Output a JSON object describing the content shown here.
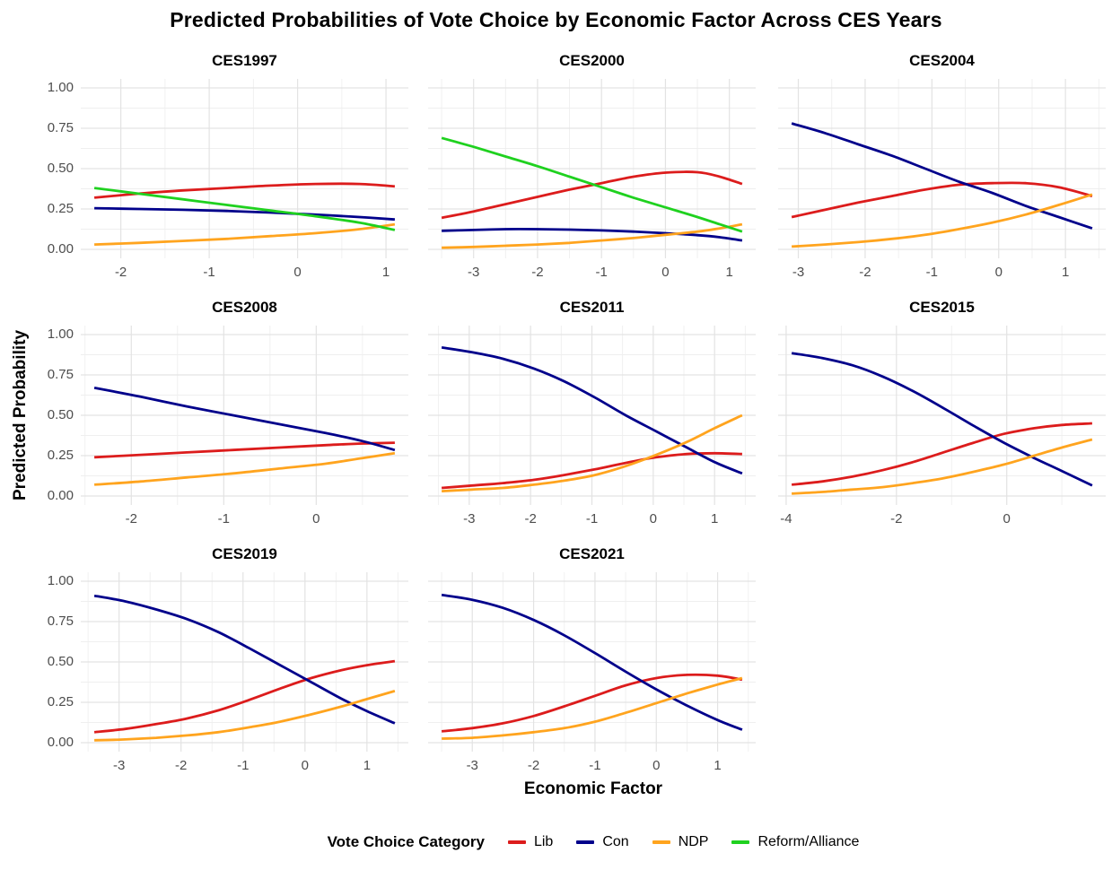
{
  "chart_data": {
    "type": "line",
    "title": "Predicted Probabilities of Vote Choice by Economic Factor Across CES Years",
    "x_label": "Economic Factor",
    "y_label": "Predicted Probability",
    "ylim": [
      0,
      1
    ],
    "grid": true,
    "y_ticks": [
      {
        "value": 1.0,
        "label": "1.00"
      },
      {
        "value": 0.75,
        "label": "0.75"
      },
      {
        "value": 0.5,
        "label": "0.50"
      },
      {
        "value": 0.25,
        "label": "0.25"
      },
      {
        "value": 0.0,
        "label": "0.00"
      }
    ],
    "legend": {
      "title": "Vote Choice Category",
      "position": "bottom",
      "items": [
        {
          "label": "Lib",
          "color": "#DC1C1C"
        },
        {
          "label": "Con",
          "color": "#00008B"
        },
        {
          "label": "NDP",
          "color": "#FFA41E"
        },
        {
          "label": "Reform/Alliance",
          "color": "#1FD11F"
        }
      ]
    },
    "facets": [
      {
        "title": "CES1997",
        "xlim": [
          -2.3,
          1.1
        ],
        "xticks": [
          -2,
          -1,
          0,
          1
        ],
        "series": [
          {
            "name": "Lib",
            "x": [
              -2.3,
              -1.8,
              -1.3,
              -0.8,
              -0.3,
              0.2,
              0.7,
              1.1
            ],
            "y": [
              0.32,
              0.345,
              0.365,
              0.38,
              0.395,
              0.405,
              0.405,
              0.39
            ]
          },
          {
            "name": "Con",
            "x": [
              -2.3,
              -1.8,
              -1.3,
              -0.8,
              -0.3,
              0.2,
              0.7,
              1.1
            ],
            "y": [
              0.255,
              0.25,
              0.245,
              0.238,
              0.228,
              0.215,
              0.2,
              0.185
            ]
          },
          {
            "name": "NDP",
            "x": [
              -2.3,
              -1.8,
              -1.3,
              -0.8,
              -0.3,
              0.2,
              0.7,
              1.1
            ],
            "y": [
              0.03,
              0.04,
              0.052,
              0.065,
              0.082,
              0.1,
              0.125,
              0.155
            ]
          },
          {
            "name": "Reform/Alliance",
            "x": [
              -2.3,
              -1.8,
              -1.3,
              -0.8,
              -0.3,
              0.2,
              0.7,
              1.1
            ],
            "y": [
              0.38,
              0.345,
              0.31,
              0.275,
              0.24,
              0.205,
              0.165,
              0.12
            ]
          }
        ]
      },
      {
        "title": "CES2000",
        "xlim": [
          -3.5,
          1.2
        ],
        "xticks": [
          -3,
          -2,
          -1,
          0,
          1
        ],
        "series": [
          {
            "name": "Lib",
            "x": [
              -3.5,
              -3,
              -2.5,
              -2,
              -1.5,
              -1,
              -0.5,
              0,
              0.5,
              0.85,
              1.2
            ],
            "y": [
              0.195,
              0.235,
              0.28,
              0.325,
              0.37,
              0.41,
              0.45,
              0.475,
              0.478,
              0.45,
              0.405
            ]
          },
          {
            "name": "Con",
            "x": [
              -3.5,
              -3,
              -2.5,
              -2,
              -1.5,
              -1,
              -0.5,
              0,
              0.5,
              0.85,
              1.2
            ],
            "y": [
              0.115,
              0.12,
              0.125,
              0.125,
              0.122,
              0.117,
              0.11,
              0.1,
              0.088,
              0.075,
              0.055
            ]
          },
          {
            "name": "NDP",
            "x": [
              -3.5,
              -3,
              -2.5,
              -2,
              -1.5,
              -1,
              -0.5,
              0,
              0.5,
              0.85,
              1.2
            ],
            "y": [
              0.01,
              0.015,
              0.022,
              0.03,
              0.04,
              0.055,
              0.07,
              0.09,
              0.11,
              0.13,
              0.155
            ]
          },
          {
            "name": "Reform/Alliance",
            "x": [
              -3.5,
              -3,
              -2.5,
              -2,
              -1.5,
              -1,
              -0.5,
              0,
              0.5,
              0.85,
              1.2
            ],
            "y": [
              0.69,
              0.635,
              0.575,
              0.515,
              0.45,
              0.385,
              0.32,
              0.26,
              0.2,
              0.155,
              0.11
            ]
          }
        ]
      },
      {
        "title": "CES2004",
        "xlim": [
          -3.1,
          1.4
        ],
        "xticks": [
          -3,
          -2,
          -1,
          0,
          1
        ],
        "series": [
          {
            "name": "Lib",
            "x": [
              -3.1,
              -2.6,
              -2.1,
              -1.6,
              -1.1,
              -0.6,
              -0.1,
              0.4,
              0.9,
              1.4
            ],
            "y": [
              0.2,
              0.245,
              0.29,
              0.33,
              0.37,
              0.4,
              0.41,
              0.41,
              0.385,
              0.33
            ]
          },
          {
            "name": "Con",
            "x": [
              -3.1,
              -2.6,
              -2.1,
              -1.6,
              -1.1,
              -0.6,
              -0.1,
              0.4,
              0.9,
              1.4
            ],
            "y": [
              0.78,
              0.72,
              0.65,
              0.58,
              0.5,
              0.42,
              0.35,
              0.27,
              0.2,
              0.13
            ]
          },
          {
            "name": "NDP",
            "x": [
              -3.1,
              -2.6,
              -2.1,
              -1.6,
              -1.1,
              -0.6,
              -0.1,
              0.4,
              0.9,
              1.4
            ],
            "y": [
              0.017,
              0.03,
              0.045,
              0.065,
              0.09,
              0.125,
              0.165,
              0.215,
              0.275,
              0.34
            ]
          }
        ]
      },
      {
        "title": "CES2008",
        "xlim": [
          -2.4,
          0.85
        ],
        "xticks": [
          -2,
          -1,
          0
        ],
        "series": [
          {
            "name": "Lib",
            "x": [
              -2.4,
              -1.9,
              -1.4,
              -0.9,
              -0.4,
              0.1,
              0.5,
              0.85
            ],
            "y": [
              0.24,
              0.255,
              0.27,
              0.285,
              0.3,
              0.315,
              0.325,
              0.33
            ]
          },
          {
            "name": "Con",
            "x": [
              -2.4,
              -1.9,
              -1.4,
              -0.9,
              -0.4,
              0.1,
              0.5,
              0.85
            ],
            "y": [
              0.67,
              0.615,
              0.555,
              0.5,
              0.445,
              0.39,
              0.34,
              0.285
            ]
          },
          {
            "name": "NDP",
            "x": [
              -2.4,
              -1.9,
              -1.4,
              -0.9,
              -0.4,
              0.1,
              0.5,
              0.85
            ],
            "y": [
              0.07,
              0.09,
              0.115,
              0.14,
              0.17,
              0.2,
              0.235,
              0.265
            ]
          }
        ]
      },
      {
        "title": "CES2011",
        "xlim": [
          -3.45,
          1.45
        ],
        "xticks": [
          -3,
          -2,
          -1,
          0,
          1
        ],
        "series": [
          {
            "name": "Lib",
            "x": [
              -3.45,
              -2.95,
              -2.45,
              -1.95,
              -1.45,
              -0.95,
              -0.45,
              0.05,
              0.55,
              1.0,
              1.45
            ],
            "y": [
              0.05,
              0.065,
              0.08,
              0.1,
              0.13,
              0.165,
              0.205,
              0.24,
              0.26,
              0.265,
              0.26
            ]
          },
          {
            "name": "Con",
            "x": [
              -3.45,
              -2.95,
              -2.45,
              -1.95,
              -1.45,
              -0.95,
              -0.45,
              0.05,
              0.55,
              1.0,
              1.45
            ],
            "y": [
              0.92,
              0.89,
              0.85,
              0.79,
              0.71,
              0.61,
              0.5,
              0.4,
              0.3,
              0.21,
              0.14
            ]
          },
          {
            "name": "NDP",
            "x": [
              -3.45,
              -2.95,
              -2.45,
              -1.95,
              -1.45,
              -0.95,
              -0.45,
              0.05,
              0.55,
              1.0,
              1.45
            ],
            "y": [
              0.03,
              0.04,
              0.05,
              0.07,
              0.095,
              0.13,
              0.185,
              0.255,
              0.335,
              0.42,
              0.5
            ]
          }
        ]
      },
      {
        "title": "CES2015",
        "xlim": [
          -3.9,
          1.55
        ],
        "xticks": [
          -4,
          -2,
          0
        ],
        "series": [
          {
            "name": "Lib",
            "x": [
              -3.9,
              -3.35,
              -2.8,
              -2.25,
              -1.7,
              -1.15,
              -0.6,
              -0.05,
              0.5,
              1.0,
              1.55
            ],
            "y": [
              0.07,
              0.09,
              0.12,
              0.16,
              0.21,
              0.27,
              0.33,
              0.385,
              0.42,
              0.44,
              0.45
            ]
          },
          {
            "name": "Con",
            "x": [
              -3.9,
              -3.35,
              -2.8,
              -2.25,
              -1.7,
              -1.15,
              -0.6,
              -0.05,
              0.5,
              1.0,
              1.55
            ],
            "y": [
              0.885,
              0.855,
              0.81,
              0.74,
              0.65,
              0.545,
              0.435,
              0.33,
              0.235,
              0.155,
              0.065
            ]
          },
          {
            "name": "NDP",
            "x": [
              -3.9,
              -3.35,
              -2.8,
              -2.25,
              -1.7,
              -1.15,
              -0.6,
              -0.05,
              0.5,
              1.0,
              1.55
            ],
            "y": [
              0.015,
              0.025,
              0.04,
              0.055,
              0.08,
              0.11,
              0.15,
              0.195,
              0.25,
              0.3,
              0.35
            ]
          }
        ]
      },
      {
        "title": "CES2019",
        "xlim": [
          -3.4,
          1.45
        ],
        "xticks": [
          -3,
          -2,
          -1,
          0,
          1
        ],
        "series": [
          {
            "name": "Lib",
            "x": [
              -3.4,
              -2.9,
              -2.4,
              -1.9,
              -1.4,
              -0.9,
              -0.4,
              0.1,
              0.6,
              1.0,
              1.45
            ],
            "y": [
              0.065,
              0.085,
              0.115,
              0.15,
              0.2,
              0.265,
              0.335,
              0.4,
              0.45,
              0.48,
              0.505
            ]
          },
          {
            "name": "Con",
            "x": [
              -3.4,
              -2.9,
              -2.4,
              -1.9,
              -1.4,
              -0.9,
              -0.4,
              0.1,
              0.6,
              1.0,
              1.45
            ],
            "y": [
              0.91,
              0.875,
              0.825,
              0.765,
              0.685,
              0.585,
              0.48,
              0.375,
              0.27,
              0.195,
              0.12
            ]
          },
          {
            "name": "NDP",
            "x": [
              -3.4,
              -2.9,
              -2.4,
              -1.9,
              -1.4,
              -0.9,
              -0.4,
              0.1,
              0.6,
              1.0,
              1.45
            ],
            "y": [
              0.015,
              0.02,
              0.03,
              0.045,
              0.065,
              0.095,
              0.13,
              0.175,
              0.225,
              0.27,
              0.32
            ]
          }
        ]
      },
      {
        "title": "CES2021",
        "xlim": [
          -3.5,
          1.4
        ],
        "xticks": [
          -3,
          -2,
          -1,
          0,
          1
        ],
        "series": [
          {
            "name": "Lib",
            "x": [
              -3.5,
              -3,
              -2.5,
              -2,
              -1.5,
              -1,
              -0.5,
              0,
              0.5,
              1,
              1.4
            ],
            "y": [
              0.07,
              0.09,
              0.12,
              0.165,
              0.225,
              0.29,
              0.355,
              0.4,
              0.42,
              0.415,
              0.39
            ]
          },
          {
            "name": "Con",
            "x": [
              -3.5,
              -3,
              -2.5,
              -2,
              -1.5,
              -1,
              -0.5,
              0,
              0.5,
              1,
              1.4
            ],
            "y": [
              0.915,
              0.885,
              0.835,
              0.76,
              0.665,
              0.555,
              0.44,
              0.33,
              0.23,
              0.14,
              0.08
            ]
          },
          {
            "name": "NDP",
            "x": [
              -3.5,
              -3,
              -2.5,
              -2,
              -1.5,
              -1,
              -0.5,
              0,
              0.5,
              1,
              1.4
            ],
            "y": [
              0.025,
              0.03,
              0.045,
              0.065,
              0.09,
              0.13,
              0.185,
              0.245,
              0.305,
              0.36,
              0.4
            ]
          }
        ]
      }
    ],
    "style": {
      "grid_major_color": "#E3E3E3",
      "grid_minor_color": "#EFEFEF",
      "tick_label_color": "#4D4D4D",
      "background": "#FFFFFF"
    }
  }
}
